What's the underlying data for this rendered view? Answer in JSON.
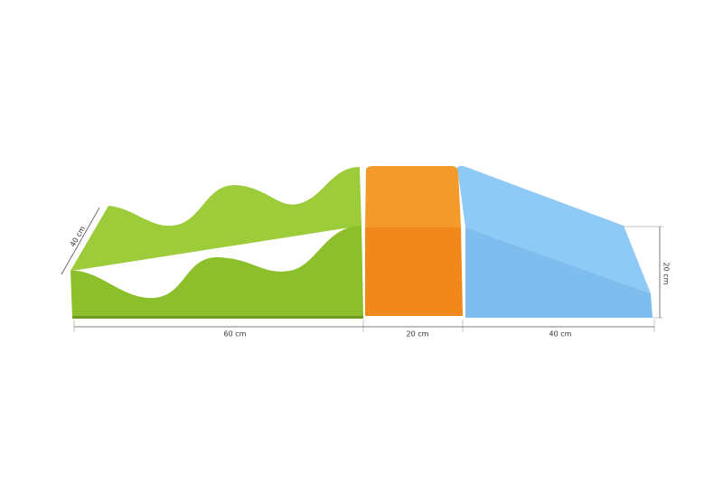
{
  "dimensions": {
    "wave_depth": "40 cm",
    "wave_length": "60 cm",
    "block_length": "20 cm",
    "slope_length": "40 cm",
    "slope_height": "20 cm"
  }
}
